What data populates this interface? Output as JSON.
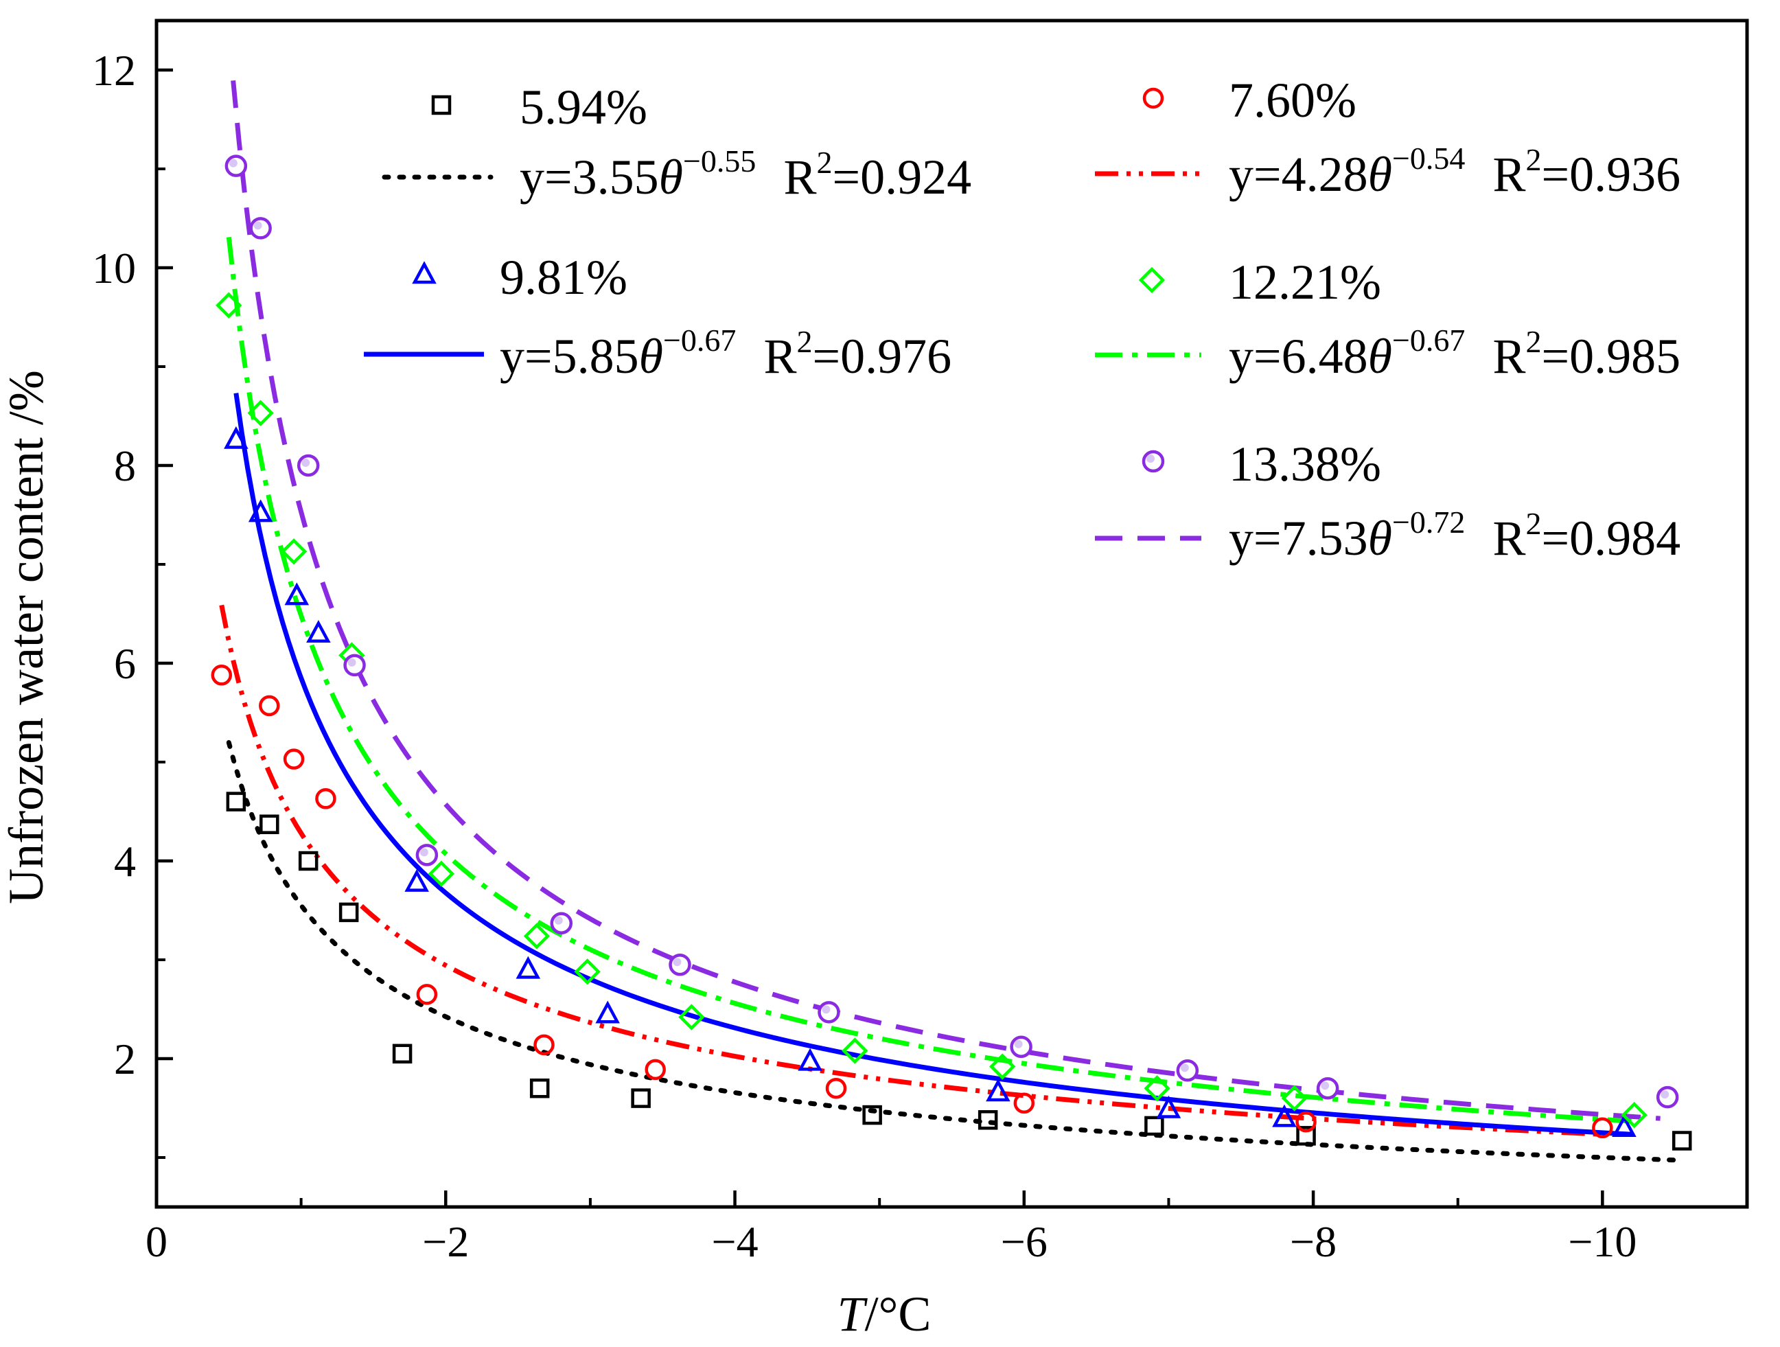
{
  "chart_data": {
    "type": "scatter",
    "title": "",
    "xlabel": {
      "italic": "T",
      "rest": "/°C"
    },
    "ylabel": "Unfrozen water content /%",
    "xlim": [
      0,
      -11
    ],
    "ylim": [
      0.5,
      12.5
    ],
    "grid": false,
    "legend_position": "top",
    "x_ticks": [
      {
        "value": 0,
        "label": "0"
      },
      {
        "value": -2,
        "label": "−2"
      },
      {
        "value": -4,
        "label": "−4"
      },
      {
        "value": -6,
        "label": "−6"
      },
      {
        "value": -8,
        "label": "−8"
      },
      {
        "value": -10,
        "label": "−10"
      }
    ],
    "y_ticks": [
      {
        "value": 2,
        "label": "2"
      },
      {
        "value": 4,
        "label": "4"
      },
      {
        "value": 6,
        "label": "6"
      },
      {
        "value": 8,
        "label": "8"
      },
      {
        "value": 10,
        "label": "10"
      },
      {
        "value": 12,
        "label": "12"
      }
    ],
    "series": [
      {
        "name": "5.94%",
        "color": "#000000",
        "marker": "square",
        "fit": {
          "a": 3.55,
          "b": -0.55,
          "label_base": "y=3.55θ",
          "exponent": "−0.55",
          "r2_base": "R",
          "r2_exp": "2",
          "r2_value": "=0.924",
          "style": "dotted",
          "x_range": [
            -0.5,
            -10.5
          ]
        },
        "points": [
          [
            -0.55,
            4.6
          ],
          [
            -0.78,
            4.37
          ],
          [
            -1.05,
            4.0
          ],
          [
            -1.33,
            3.48
          ],
          [
            -1.7,
            2.05
          ],
          [
            -2.65,
            1.7
          ],
          [
            -3.35,
            1.6
          ],
          [
            -4.95,
            1.43
          ],
          [
            -5.75,
            1.38
          ],
          [
            -6.9,
            1.32
          ],
          [
            -7.95,
            1.22
          ],
          [
            -10.55,
            1.17
          ]
        ]
      },
      {
        "name": "7.60%",
        "color": "#ff0000",
        "marker": "circle",
        "fit": {
          "a": 4.28,
          "b": -0.54,
          "label_base": "y=4.28θ",
          "exponent": "−0.54",
          "r2_base": "R",
          "r2_exp": "2",
          "r2_value": "=0.936",
          "style": "dash-dot-dot",
          "x_range": [
            -0.45,
            -10.0
          ]
        },
        "points": [
          [
            -0.45,
            5.88
          ],
          [
            -0.78,
            5.57
          ],
          [
            -0.95,
            5.03
          ],
          [
            -1.17,
            4.63
          ],
          [
            -1.87,
            2.65
          ],
          [
            -2.68,
            2.14
          ],
          [
            -3.45,
            1.89
          ],
          [
            -4.7,
            1.7
          ],
          [
            -6.0,
            1.55
          ],
          [
            -7.95,
            1.36
          ],
          [
            -10.0,
            1.3
          ]
        ]
      },
      {
        "name": "9.81%",
        "color": "#0000ff",
        "marker": "triangle",
        "fit": {
          "a": 5.85,
          "b": -0.67,
          "label_base": "y=5.85θ",
          "exponent": "−0.67",
          "r2_base": "R",
          "r2_exp": "2",
          "r2_value": "=0.976",
          "style": "solid",
          "x_range": [
            -0.55,
            -10.2
          ]
        },
        "points": [
          [
            -0.55,
            8.26
          ],
          [
            -0.72,
            7.52
          ],
          [
            -0.97,
            6.68
          ],
          [
            -1.12,
            6.3
          ],
          [
            -1.8,
            3.78
          ],
          [
            -2.57,
            2.9
          ],
          [
            -3.12,
            2.45
          ],
          [
            -4.52,
            1.97
          ],
          [
            -5.82,
            1.66
          ],
          [
            -7.0,
            1.49
          ],
          [
            -7.8,
            1.4
          ],
          [
            -10.15,
            1.3
          ]
        ]
      },
      {
        "name": "12.21%",
        "color": "#00ff00",
        "marker": "diamond",
        "fit": {
          "a": 6.48,
          "b": -0.67,
          "label_base": "y=6.48θ",
          "exponent": "−0.67",
          "r2_base": "R",
          "r2_exp": "2",
          "r2_value": "=0.985",
          "style": "dash-dot",
          "x_range": [
            -0.5,
            -10.2
          ]
        },
        "points": [
          [
            -0.5,
            9.62
          ],
          [
            -0.72,
            8.53
          ],
          [
            -0.95,
            7.13
          ],
          [
            -1.35,
            6.08
          ],
          [
            -1.97,
            3.87
          ],
          [
            -2.63,
            3.24
          ],
          [
            -2.98,
            2.88
          ],
          [
            -3.7,
            2.42
          ],
          [
            -4.83,
            2.08
          ],
          [
            -5.85,
            1.92
          ],
          [
            -6.92,
            1.7
          ],
          [
            -7.87,
            1.6
          ],
          [
            -10.22,
            1.43
          ]
        ]
      },
      {
        "name": "13.38%",
        "color": "#8a2be2",
        "marker": "ball",
        "fit": {
          "a": 7.53,
          "b": -0.72,
          "label_base": "y=7.53θ",
          "exponent": "−0.72",
          "r2_base": "R",
          "r2_exp": "2",
          "r2_value": "=0.984",
          "style": "dashed",
          "x_range": [
            -0.53,
            -10.4
          ]
        },
        "points": [
          [
            -0.55,
            11.03
          ],
          [
            -0.72,
            10.4
          ],
          [
            -1.05,
            8.0
          ],
          [
            -1.37,
            5.98
          ],
          [
            -1.87,
            4.06
          ],
          [
            -2.8,
            3.37
          ],
          [
            -3.62,
            2.95
          ],
          [
            -4.65,
            2.47
          ],
          [
            -5.98,
            2.12
          ],
          [
            -7.13,
            1.88
          ],
          [
            -8.1,
            1.7
          ],
          [
            -10.45,
            1.61
          ]
        ]
      }
    ]
  }
}
